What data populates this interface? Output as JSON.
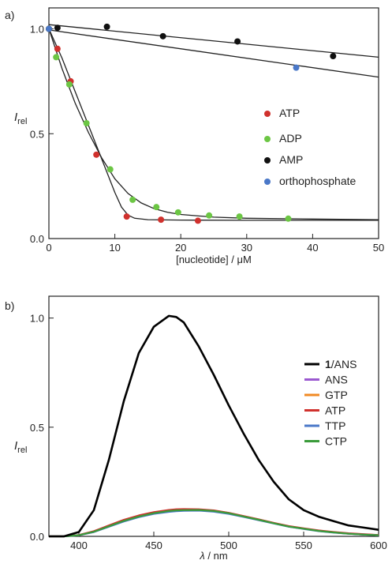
{
  "chart_data": [
    {
      "type": "scatter",
      "panel_label": "a)",
      "xlabel": "[nucleotide] / μM",
      "ylabel_main": "I",
      "ylabel_sub": "rel",
      "xlim": [
        0,
        50
      ],
      "ylim": [
        0,
        1.1
      ],
      "xticks": [
        0,
        10,
        20,
        30,
        40,
        50
      ],
      "xtick_labels": [
        "0",
        "10",
        "20",
        "30",
        "40",
        "50"
      ],
      "yticks": [
        0.0,
        0.5,
        1.0
      ],
      "ytick_labels": [
        "0.0",
        "0.5",
        "1.0"
      ],
      "legend_position": "right",
      "series": [
        {
          "name": "ATP",
          "color": "#d0312d",
          "x": [
            0,
            1.3,
            3.3,
            7.2,
            11.8,
            17,
            22.6
          ],
          "y": [
            1.0,
            0.905,
            0.75,
            0.4,
            0.105,
            0.09,
            0.085
          ]
        },
        {
          "name": "ADP",
          "color": "#6cc644",
          "x": [
            0,
            1.1,
            3.1,
            5.7,
            9.3,
            12.7,
            16.3,
            19.6,
            24.3,
            28.9,
            36.3
          ],
          "y": [
            1.0,
            0.865,
            0.735,
            0.55,
            0.33,
            0.185,
            0.15,
            0.125,
            0.11,
            0.105,
            0.095
          ]
        },
        {
          "name": "AMP",
          "color": "#111111",
          "x": [
            0,
            1.3,
            8.8,
            17.3,
            28.6,
            43.1
          ],
          "y": [
            1.0,
            1.005,
            1.01,
            0.965,
            0.94,
            0.87
          ]
        },
        {
          "name": "orthophosphate",
          "color": "#4a78c8",
          "x": [
            0,
            37.5
          ],
          "y": [
            1.0,
            0.815
          ]
        }
      ],
      "fit_lines": [
        {
          "name": "AMP fit",
          "x": [
            0,
            50
          ],
          "y": [
            1.02,
            0.865
          ]
        },
        {
          "name": "orthophosphate fit",
          "x": [
            0,
            50
          ],
          "y": [
            0.995,
            0.77
          ]
        },
        {
          "name": "ADP fit",
          "x": [
            0,
            2,
            4,
            6,
            8,
            10,
            12,
            14,
            16,
            18,
            20,
            25,
            30,
            40,
            50
          ],
          "y": [
            1.0,
            0.81,
            0.645,
            0.505,
            0.385,
            0.285,
            0.215,
            0.17,
            0.142,
            0.125,
            0.115,
            0.102,
            0.097,
            0.093,
            0.09
          ]
        },
        {
          "name": "ATP fit",
          "x": [
            0,
            2,
            4,
            6,
            8,
            10,
            11,
            12,
            13,
            15,
            20,
            30,
            50
          ],
          "y": [
            1.0,
            0.86,
            0.7,
            0.54,
            0.38,
            0.22,
            0.15,
            0.112,
            0.097,
            0.09,
            0.088,
            0.087,
            0.087
          ]
        }
      ]
    },
    {
      "type": "line",
      "panel_label": "b)",
      "xlabel_main": "λ",
      "xlabel_unit": " / nm",
      "ylabel_main": "I",
      "ylabel_sub": "rel",
      "xlim": [
        380,
        600
      ],
      "ylim": [
        0,
        1.1
      ],
      "xticks": [
        400,
        450,
        500,
        550,
        600
      ],
      "xtick_labels": [
        "400",
        "450",
        "500",
        "550",
        "600"
      ],
      "yticks": [
        0.0,
        0.5,
        1.0
      ],
      "ytick_labels": [
        "0.0",
        "0.5",
        "1.0"
      ],
      "legend_position": "right",
      "x": [
        380,
        390,
        400,
        410,
        420,
        430,
        440,
        450,
        460,
        465,
        470,
        480,
        490,
        500,
        510,
        520,
        530,
        540,
        550,
        560,
        570,
        580,
        590,
        600
      ],
      "series": [
        {
          "name_bold": "1",
          "name": "/ANS",
          "color": "#000000",
          "y": [
            0.0,
            0.0,
            0.02,
            0.12,
            0.35,
            0.62,
            0.84,
            0.96,
            1.01,
            1.005,
            0.98,
            0.87,
            0.74,
            0.6,
            0.47,
            0.35,
            0.25,
            0.17,
            0.12,
            0.09,
            0.07,
            0.05,
            0.04,
            0.03
          ]
        },
        {
          "name": "ANS",
          "color": "#9b59d0",
          "y": [
            0.0,
            0.0,
            0.005,
            0.02,
            0.045,
            0.07,
            0.09,
            0.105,
            0.115,
            0.118,
            0.12,
            0.12,
            0.115,
            0.105,
            0.09,
            0.075,
            0.06,
            0.045,
            0.035,
            0.025,
            0.018,
            0.012,
            0.008,
            0.005
          ]
        },
        {
          "name": "GTP",
          "color": "#f08a24",
          "y": [
            0.0,
            0.0,
            0.006,
            0.022,
            0.048,
            0.073,
            0.093,
            0.108,
            0.118,
            0.121,
            0.122,
            0.122,
            0.117,
            0.107,
            0.092,
            0.077,
            0.061,
            0.046,
            0.036,
            0.026,
            0.019,
            0.013,
            0.009,
            0.006
          ]
        },
        {
          "name": "ATP",
          "color": "#d0312d",
          "y": [
            0.0,
            0.0,
            0.006,
            0.024,
            0.05,
            0.076,
            0.096,
            0.111,
            0.121,
            0.124,
            0.125,
            0.124,
            0.119,
            0.108,
            0.093,
            0.078,
            0.062,
            0.047,
            0.037,
            0.027,
            0.02,
            0.014,
            0.01,
            0.006
          ]
        },
        {
          "name": "TTP",
          "color": "#4a78c8",
          "y": [
            0.0,
            0.0,
            0.005,
            0.02,
            0.044,
            0.068,
            0.088,
            0.103,
            0.112,
            0.115,
            0.117,
            0.118,
            0.113,
            0.103,
            0.089,
            0.074,
            0.059,
            0.044,
            0.034,
            0.024,
            0.017,
            0.012,
            0.008,
            0.005
          ]
        },
        {
          "name": "CTP",
          "color": "#3a9b3a",
          "y": [
            0.0,
            0.0,
            0.005,
            0.021,
            0.046,
            0.071,
            0.091,
            0.106,
            0.116,
            0.119,
            0.12,
            0.121,
            0.116,
            0.106,
            0.091,
            0.076,
            0.06,
            0.045,
            0.035,
            0.025,
            0.018,
            0.012,
            0.008,
            0.005
          ]
        }
      ]
    }
  ]
}
